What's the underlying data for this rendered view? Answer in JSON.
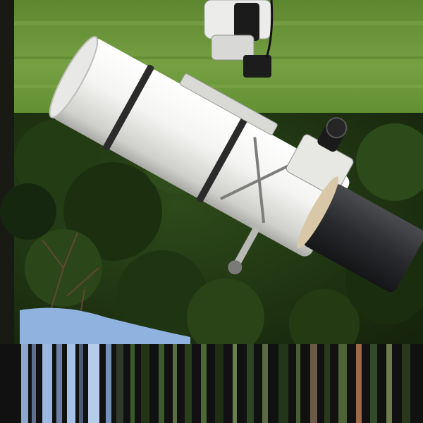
{
  "image": {
    "subject": "telescope-on-mount-outdoors",
    "colors": {
      "lawn_light": "#6f9a3c",
      "lawn_dark": "#4c7325",
      "hedge": "#1f3312",
      "tube": "#f2f2f0",
      "dew_shield": "#2a2b2e",
      "sky": "#8fb2df",
      "stripe_band": "#111111"
    }
  }
}
